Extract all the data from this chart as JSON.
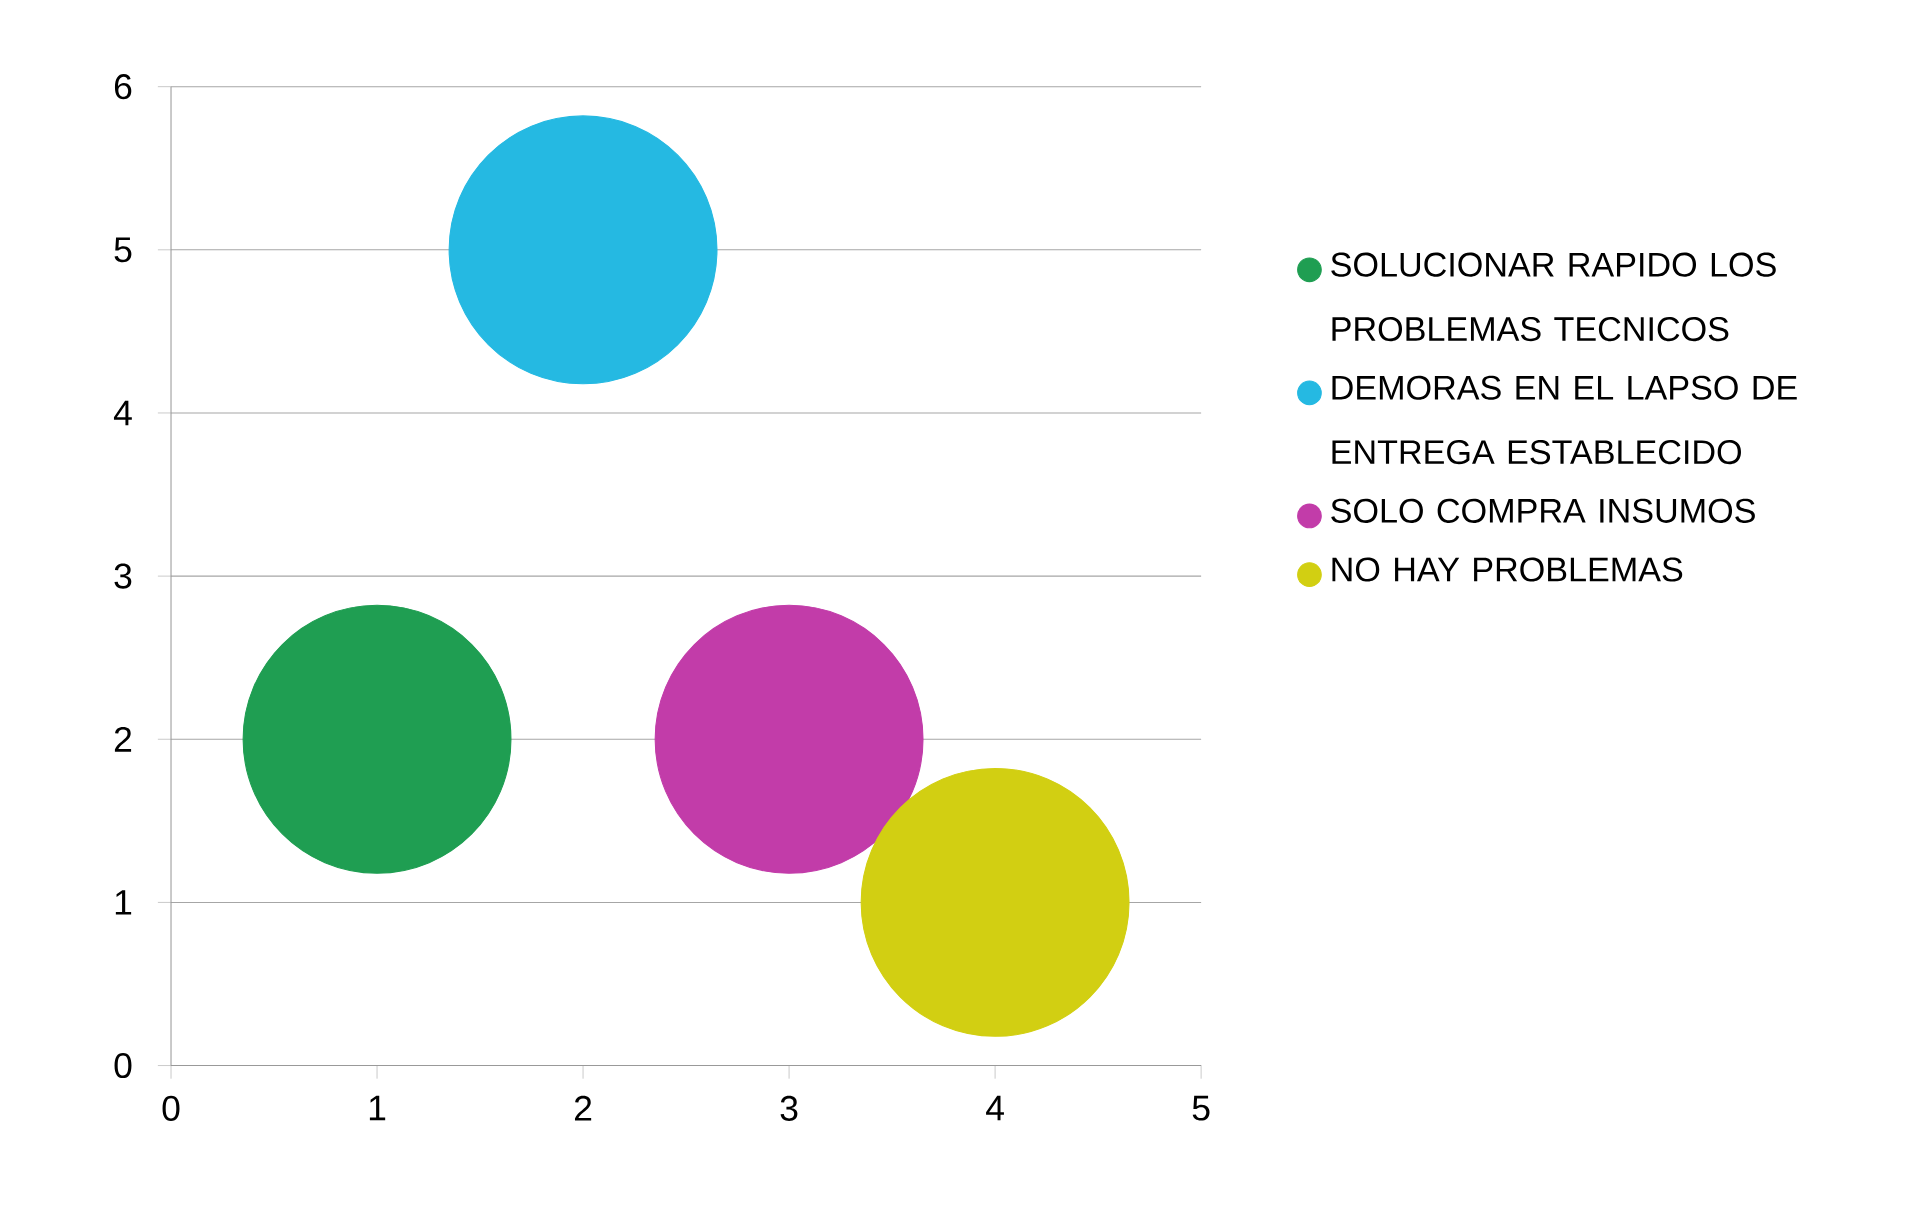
{
  "chart_data": {
    "type": "bubble",
    "xlim": [
      0,
      5
    ],
    "ylim": [
      0,
      6
    ],
    "xticks": [
      0,
      1,
      2,
      3,
      4,
      5
    ],
    "yticks": [
      0,
      1,
      2,
      3,
      4,
      5,
      6
    ],
    "grid": "y",
    "legend": "right",
    "marker": "circle",
    "series": [
      {
        "name": "SOLUCIONAR RAPIDO LOS PROBLEMAS TECNICOS",
        "color": "#1f9e52",
        "x": [
          1
        ],
        "values": [
          2
        ],
        "sizes": [
          1
        ]
      },
      {
        "name": "DEMORAS EN EL LAPSO DE ENTREGA ESTABLECIDO",
        "color": "#25b9e2",
        "x": [
          2
        ],
        "values": [
          5
        ],
        "sizes": [
          1
        ]
      },
      {
        "name": "SOLO COMPRA INSUMOS",
        "color": "#c23ca9",
        "x": [
          3
        ],
        "values": [
          2
        ],
        "sizes": [
          1
        ]
      },
      {
        "name": "NO HAY PROBLEMAS",
        "color": "#d2cf12",
        "x": [
          4
        ],
        "values": [
          1
        ],
        "sizes": [
          1
        ]
      }
    ]
  }
}
